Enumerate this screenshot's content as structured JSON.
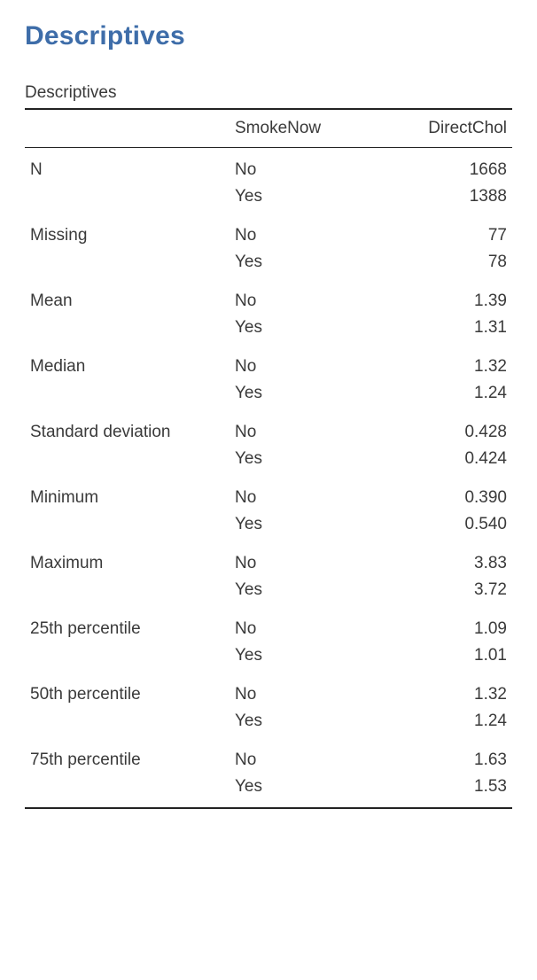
{
  "page": {
    "title": "Descriptives",
    "table_caption": "Descriptives"
  },
  "table": {
    "type": "table",
    "columns": {
      "stat": "",
      "group": "SmokeNow",
      "value": "DirectChol"
    },
    "column_align": {
      "stat": "left",
      "group": "left",
      "value": "right"
    },
    "border_color": "#222222",
    "text_color": "#3a3a3a",
    "title_color": "#3e6da9",
    "background_color": "#ffffff",
    "fontsize": 19,
    "stats": [
      {
        "label": "N",
        "rows": [
          {
            "group": "No",
            "value": "1668"
          },
          {
            "group": "Yes",
            "value": "1388"
          }
        ]
      },
      {
        "label": "Missing",
        "rows": [
          {
            "group": "No",
            "value": "77"
          },
          {
            "group": "Yes",
            "value": "78"
          }
        ]
      },
      {
        "label": "Mean",
        "rows": [
          {
            "group": "No",
            "value": "1.39"
          },
          {
            "group": "Yes",
            "value": "1.31"
          }
        ]
      },
      {
        "label": "Median",
        "rows": [
          {
            "group": "No",
            "value": "1.32"
          },
          {
            "group": "Yes",
            "value": "1.24"
          }
        ]
      },
      {
        "label": "Standard deviation",
        "rows": [
          {
            "group": "No",
            "value": "0.428"
          },
          {
            "group": "Yes",
            "value": "0.424"
          }
        ]
      },
      {
        "label": "Minimum",
        "rows": [
          {
            "group": "No",
            "value": "0.390"
          },
          {
            "group": "Yes",
            "value": "0.540"
          }
        ]
      },
      {
        "label": "Maximum",
        "rows": [
          {
            "group": "No",
            "value": "3.83"
          },
          {
            "group": "Yes",
            "value": "3.72"
          }
        ]
      },
      {
        "label": "25th percentile",
        "rows": [
          {
            "group": "No",
            "value": "1.09"
          },
          {
            "group": "Yes",
            "value": "1.01"
          }
        ]
      },
      {
        "label": "50th percentile",
        "rows": [
          {
            "group": "No",
            "value": "1.32"
          },
          {
            "group": "Yes",
            "value": "1.24"
          }
        ]
      },
      {
        "label": "75th percentile",
        "rows": [
          {
            "group": "No",
            "value": "1.63"
          },
          {
            "group": "Yes",
            "value": "1.53"
          }
        ]
      }
    ]
  }
}
